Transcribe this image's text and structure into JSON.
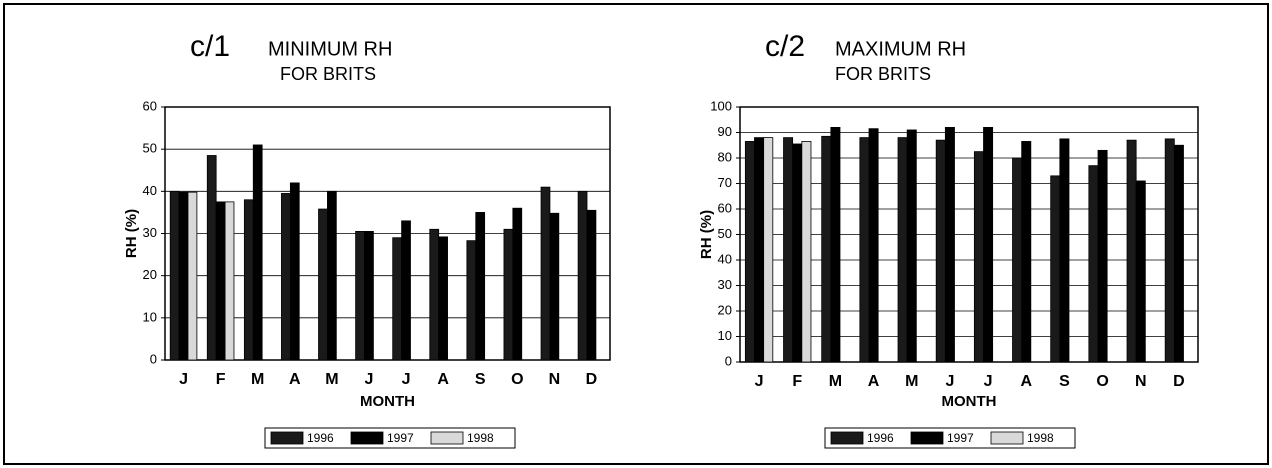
{
  "chart_data": [
    {
      "type": "bar",
      "label": "c/1",
      "title": "MINIMUM RH",
      "subtitle": "FOR BRITS",
      "x_label": "MONTH",
      "y_label": "RH (%)",
      "categories": [
        "J",
        "F",
        "M",
        "A",
        "M",
        "J",
        "J",
        "A",
        "S",
        "O",
        "N",
        "D"
      ],
      "series": [
        {
          "name": "1996",
          "color": "#1a1a1a",
          "values": [
            40,
            48.5,
            38,
            39.5,
            35.8,
            30.5,
            29,
            31,
            28.3,
            31,
            41,
            40
          ]
        },
        {
          "name": "1997",
          "color": "#000000",
          "values": [
            39.8,
            37.5,
            51,
            42,
            40,
            30.5,
            33,
            29.2,
            35,
            36,
            34.8,
            35.5
          ]
        },
        {
          "name": "1998",
          "color": "#d9d9d9",
          "values": [
            39.8,
            37.5,
            null,
            null,
            null,
            null,
            null,
            null,
            null,
            null,
            null,
            null
          ]
        }
      ],
      "ylim": [
        0,
        60
      ],
      "yticks": [
        0,
        10,
        20,
        30,
        40,
        50,
        60
      ],
      "grid": true,
      "legend": "bottom"
    },
    {
      "type": "bar",
      "label": "c/2",
      "title": "MAXIMUM RH",
      "subtitle": "FOR BRITS",
      "x_label": "MONTH",
      "y_label": "RH (%)",
      "categories": [
        "J",
        "F",
        "M",
        "A",
        "M",
        "J",
        "J",
        "A",
        "S",
        "O",
        "N",
        "D"
      ],
      "series": [
        {
          "name": "1996",
          "color": "#1a1a1a",
          "values": [
            86.5,
            88,
            88.5,
            88,
            88,
            87,
            82.5,
            80,
            73,
            77,
            87,
            87.5
          ]
        },
        {
          "name": "1997",
          "color": "#000000",
          "values": [
            88,
            85.5,
            92,
            91.5,
            91,
            92,
            92,
            86.5,
            87.5,
            83,
            71,
            85
          ]
        },
        {
          "name": "1998",
          "color": "#d9d9d9",
          "values": [
            88,
            86.5,
            null,
            null,
            null,
            null,
            null,
            null,
            null,
            null,
            null,
            null
          ]
        }
      ],
      "ylim": [
        0,
        100
      ],
      "yticks": [
        0,
        10,
        20,
        30,
        40,
        50,
        60,
        70,
        80,
        90,
        100
      ],
      "grid": true,
      "legend": "bottom"
    }
  ]
}
